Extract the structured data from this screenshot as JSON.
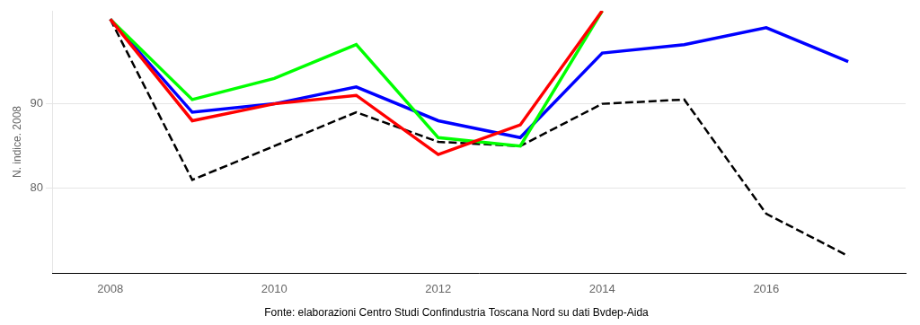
{
  "chart_data": {
    "type": "line",
    "y_label": "N. indice. 2008",
    "annotations": [
      "Fonte: elaborazioni Centro Studi Confindustria Toscana Nord su dati Bvdep-Aida"
    ],
    "x": [
      2008,
      2009,
      2010,
      2011,
      2012,
      2013,
      2014,
      2015,
      2016,
      2017
    ],
    "series": [
      {
        "color": "red",
        "values": [
          100,
          88.0,
          90.0,
          91.0,
          84.0,
          87.5,
          101.0,
          null,
          null,
          null
        ]
      },
      {
        "color": "lime",
        "values": [
          100,
          90.5,
          93.0,
          97.0,
          86.0,
          85.0,
          101.0,
          null,
          null,
          null
        ]
      },
      {
        "color": "blue",
        "values": [
          100,
          89.0,
          90.0,
          92.0,
          88.0,
          86.0,
          96.0,
          97.0,
          99.0,
          95.0
        ]
      },
      {
        "color": "black",
        "line_style": "dashed",
        "values": [
          100,
          81.0,
          85.0,
          89.0,
          85.5,
          85.0,
          90.0,
          90.5,
          77.0,
          72.0
        ]
      }
    ],
    "xlim": [
      2007.3,
      2017.7
    ],
    "xticks": [
      2008,
      2010,
      2012,
      2014,
      2016
    ],
    "ylim": [
      70,
      101
    ],
    "yticks": [
      80,
      90
    ],
    "grid": "y"
  }
}
